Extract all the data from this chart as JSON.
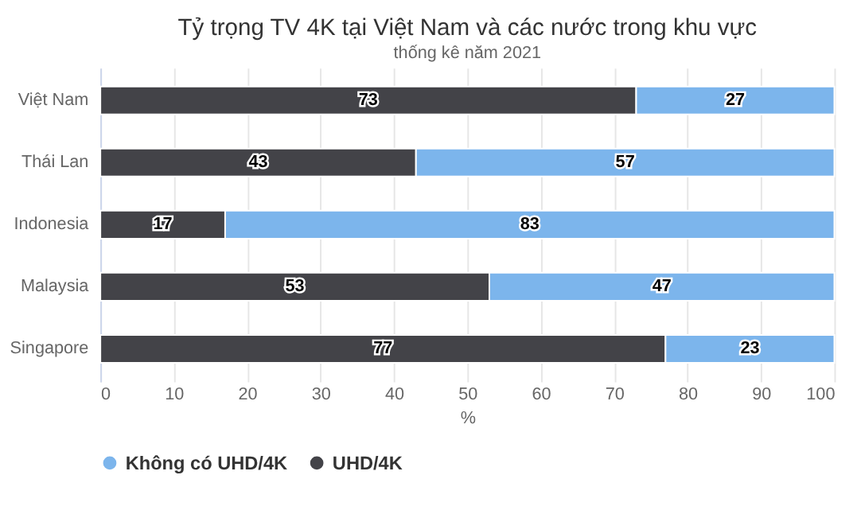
{
  "chart_data": {
    "type": "bar",
    "orientation": "horizontal",
    "stacked": true,
    "title": "Tỷ trọng TV 4K tại Việt Nam và các nước trong khu vực",
    "subtitle": "thống kê năm 2021",
    "categories": [
      "Việt Nam",
      "Thái Lan",
      "Indonesia",
      "Malaysia",
      "Singapore"
    ],
    "series": [
      {
        "name": "UHD/4K",
        "color": "#434348",
        "values": [
          73,
          43,
          17,
          53,
          77
        ]
      },
      {
        "name": "Không có UHD/4K",
        "color": "#7cb5ec",
        "values": [
          27,
          57,
          83,
          47,
          23
        ]
      }
    ],
    "xlim": [
      0,
      100
    ],
    "xticks": [
      0,
      10,
      20,
      30,
      40,
      50,
      60,
      70,
      80,
      90,
      100
    ],
    "xlabel": "%",
    "grid": "x",
    "legend": "bottom",
    "data_labels": true
  }
}
